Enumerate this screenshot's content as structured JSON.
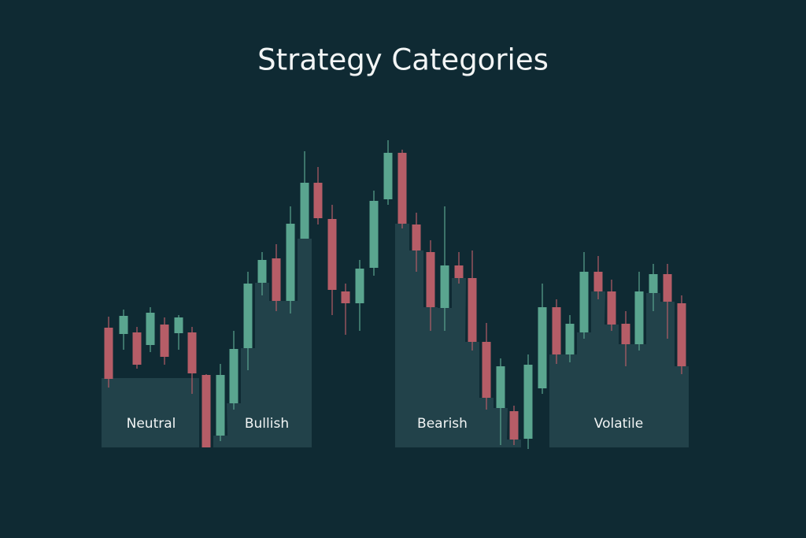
{
  "header": {
    "title": "Strategy Categories"
  },
  "categories": [
    {
      "label": "Neutral"
    },
    {
      "label": "Bullish"
    },
    {
      "label": "Bearish"
    },
    {
      "label": "Volatile"
    }
  ]
}
